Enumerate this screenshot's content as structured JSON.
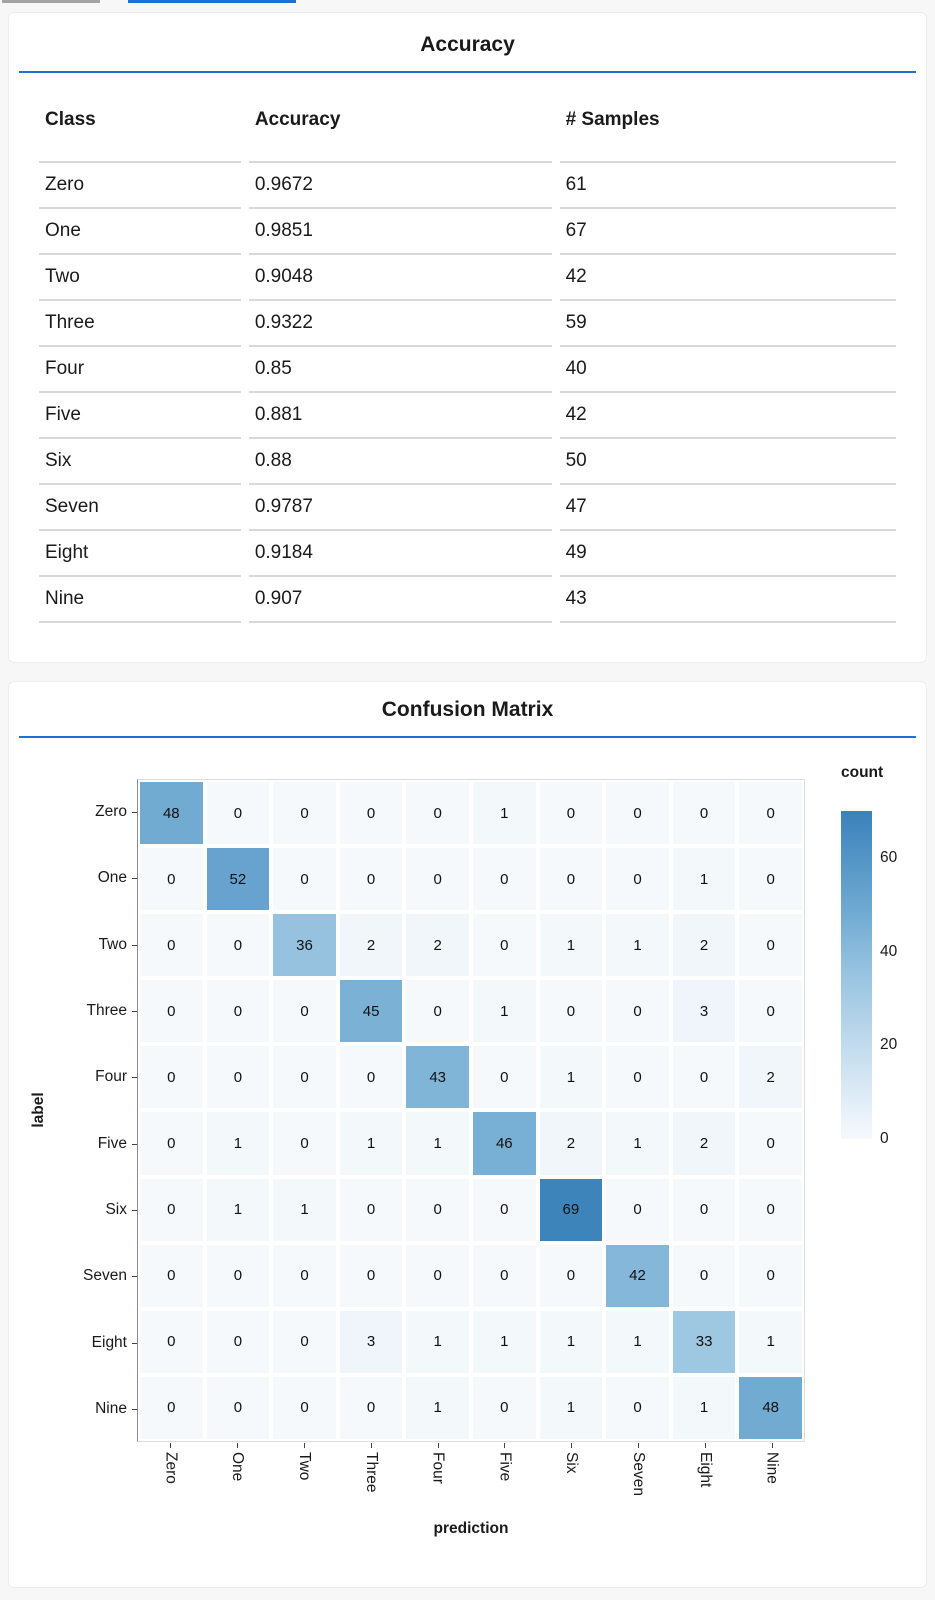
{
  "page": {
    "background": "#f7f7f7",
    "card_background": "#ffffff",
    "accent_blue": "#1f70d6",
    "tab_gray": "#a3a3a3"
  },
  "top_tabs": {
    "inactive_indicator": "gray",
    "active_indicator": "blue"
  },
  "accuracy_card": {
    "title": "Accuracy",
    "table": {
      "columns": [
        "Class",
        "Accuracy",
        "# Samples"
      ],
      "rows": [
        [
          "Zero",
          "0.9672",
          "61"
        ],
        [
          "One",
          "0.9851",
          "67"
        ],
        [
          "Two",
          "0.9048",
          "42"
        ],
        [
          "Three",
          "0.9322",
          "59"
        ],
        [
          "Four",
          "0.85",
          "40"
        ],
        [
          "Five",
          "0.881",
          "42"
        ],
        [
          "Six",
          "0.88",
          "50"
        ],
        [
          "Seven",
          "0.9787",
          "47"
        ],
        [
          "Eight",
          "0.9184",
          "49"
        ],
        [
          "Nine",
          "0.907",
          "43"
        ]
      ]
    }
  },
  "confusion_card": {
    "title": "Confusion Matrix"
  },
  "chart_data": {
    "type": "heatmap",
    "title": "Confusion Matrix",
    "xlabel": "prediction",
    "ylabel": "label",
    "categories": [
      "Zero",
      "One",
      "Two",
      "Three",
      "Four",
      "Five",
      "Six",
      "Seven",
      "Eight",
      "Nine"
    ],
    "matrix": [
      [
        48,
        0,
        0,
        0,
        0,
        1,
        0,
        0,
        0,
        0
      ],
      [
        0,
        52,
        0,
        0,
        0,
        0,
        0,
        0,
        1,
        0
      ],
      [
        0,
        0,
        36,
        2,
        2,
        0,
        1,
        1,
        2,
        0
      ],
      [
        0,
        0,
        0,
        45,
        0,
        1,
        0,
        0,
        3,
        0
      ],
      [
        0,
        0,
        0,
        0,
        43,
        0,
        1,
        0,
        0,
        2
      ],
      [
        0,
        1,
        0,
        1,
        1,
        46,
        2,
        1,
        2,
        0
      ],
      [
        0,
        1,
        1,
        0,
        0,
        0,
        69,
        0,
        0,
        0
      ],
      [
        0,
        0,
        0,
        0,
        0,
        0,
        0,
        42,
        0,
        0
      ],
      [
        0,
        0,
        0,
        3,
        1,
        1,
        1,
        1,
        33,
        1
      ],
      [
        0,
        0,
        0,
        0,
        1,
        0,
        1,
        0,
        1,
        48
      ]
    ],
    "legend": {
      "title": "count",
      "ticks": [
        60,
        40,
        20,
        0
      ],
      "domain": [
        0,
        70
      ],
      "position": "right"
    },
    "colormap": [
      {
        "t": 0.0,
        "color": "#f5f9fc"
      },
      {
        "t": 0.05,
        "color": "#eef4fa"
      },
      {
        "t": 0.5,
        "color": "#99c4e0"
      },
      {
        "t": 0.7,
        "color": "#6fa9d1"
      },
      {
        "t": 1.0,
        "color": "#3a82ba"
      }
    ],
    "grid": false
  }
}
